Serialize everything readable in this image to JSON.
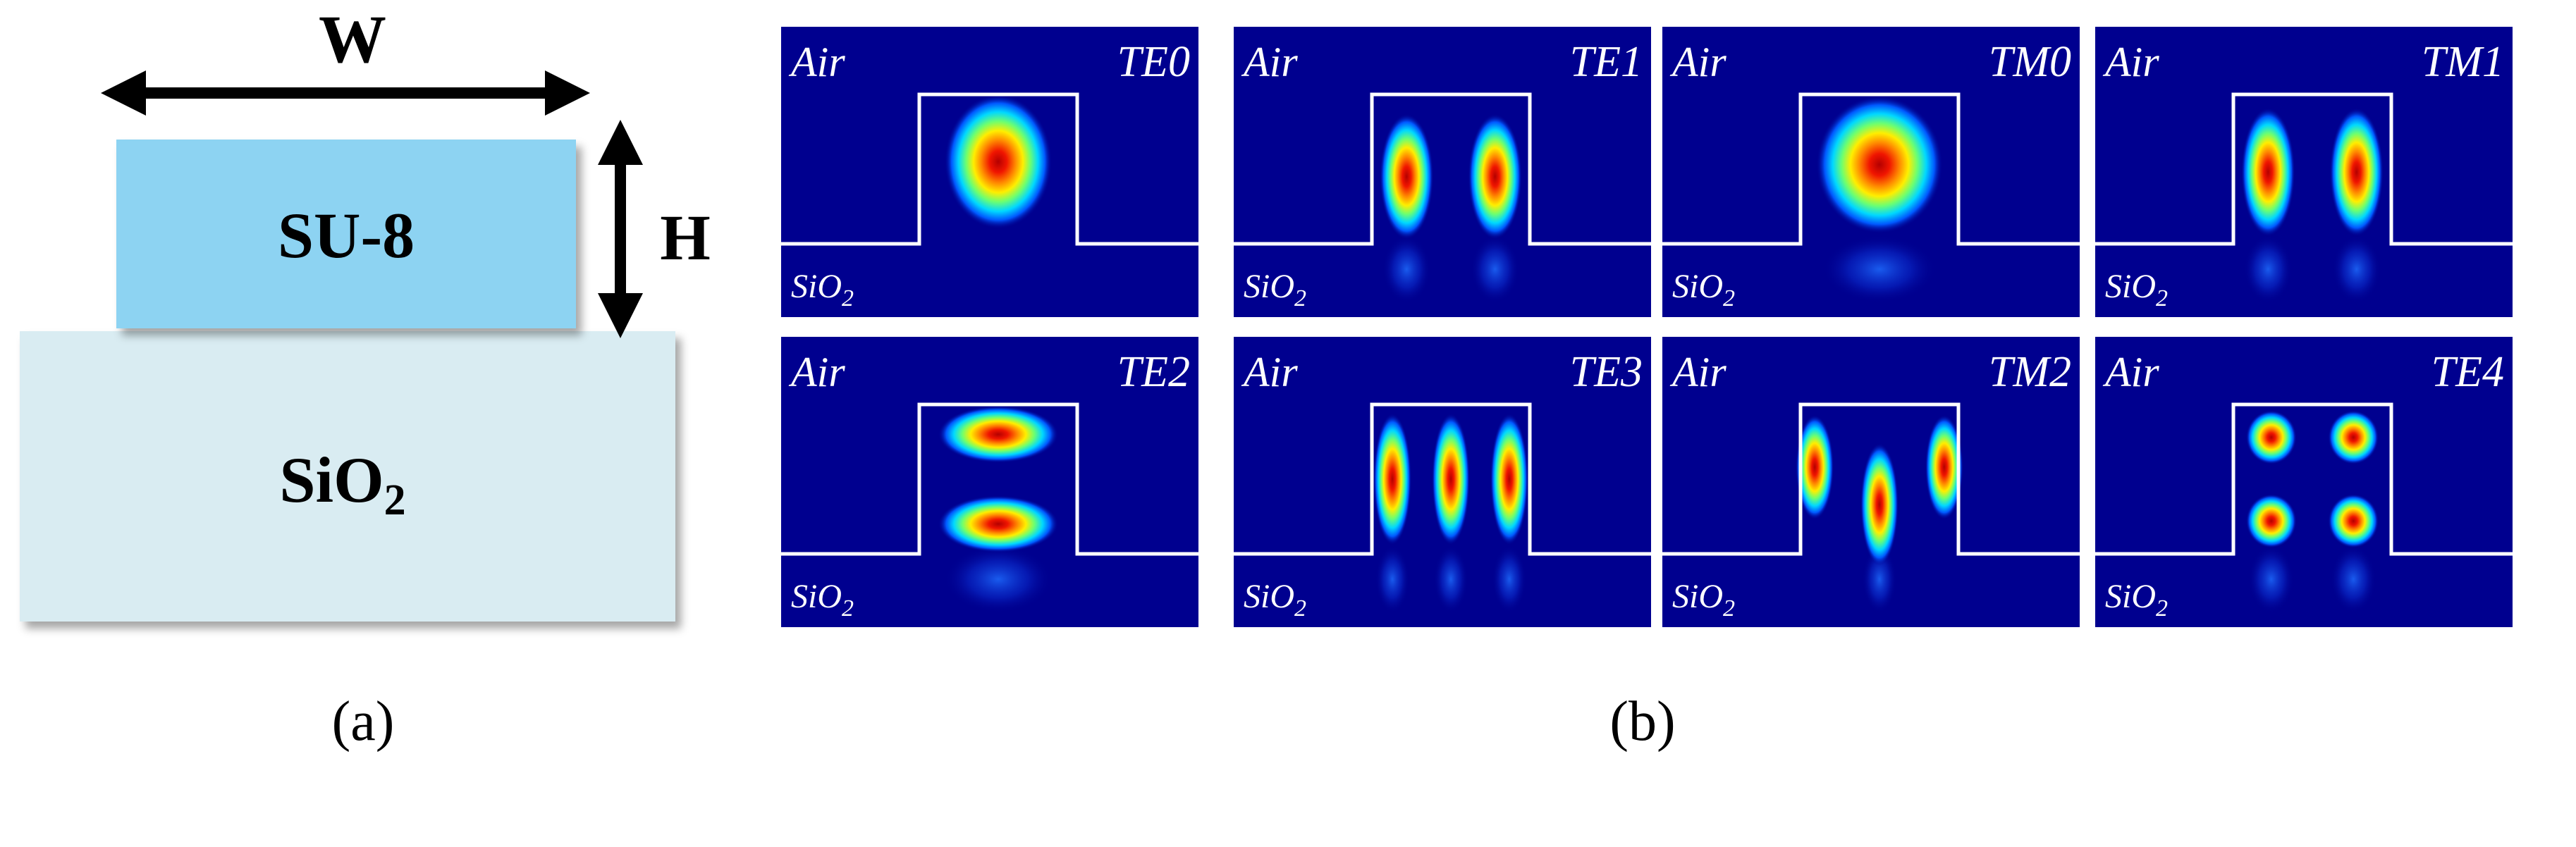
{
  "panel_a": {
    "width_label": "W",
    "height_label": "H",
    "core_label": "SU-8",
    "substrate_label_main": "SiO",
    "substrate_label_sub": "2",
    "caption": "(a)",
    "core_color": "#8dd3f2",
    "substrate_color": "#d9ecf2"
  },
  "panel_b": {
    "caption": "(b)",
    "upper_label": "Air",
    "lower_label_main": "SiO",
    "lower_label_sub": "2",
    "background_color": "#00008f",
    "modes": [
      {
        "name": "TE",
        "order": "0"
      },
      {
        "name": "TE",
        "order": "1"
      },
      {
        "name": "TM",
        "order": "0"
      },
      {
        "name": "TM",
        "order": "1"
      },
      {
        "name": "TE",
        "order": "2"
      },
      {
        "name": "TE",
        "order": "3"
      },
      {
        "name": "TM",
        "order": "2"
      },
      {
        "name": "TE",
        "order": "4"
      }
    ]
  }
}
